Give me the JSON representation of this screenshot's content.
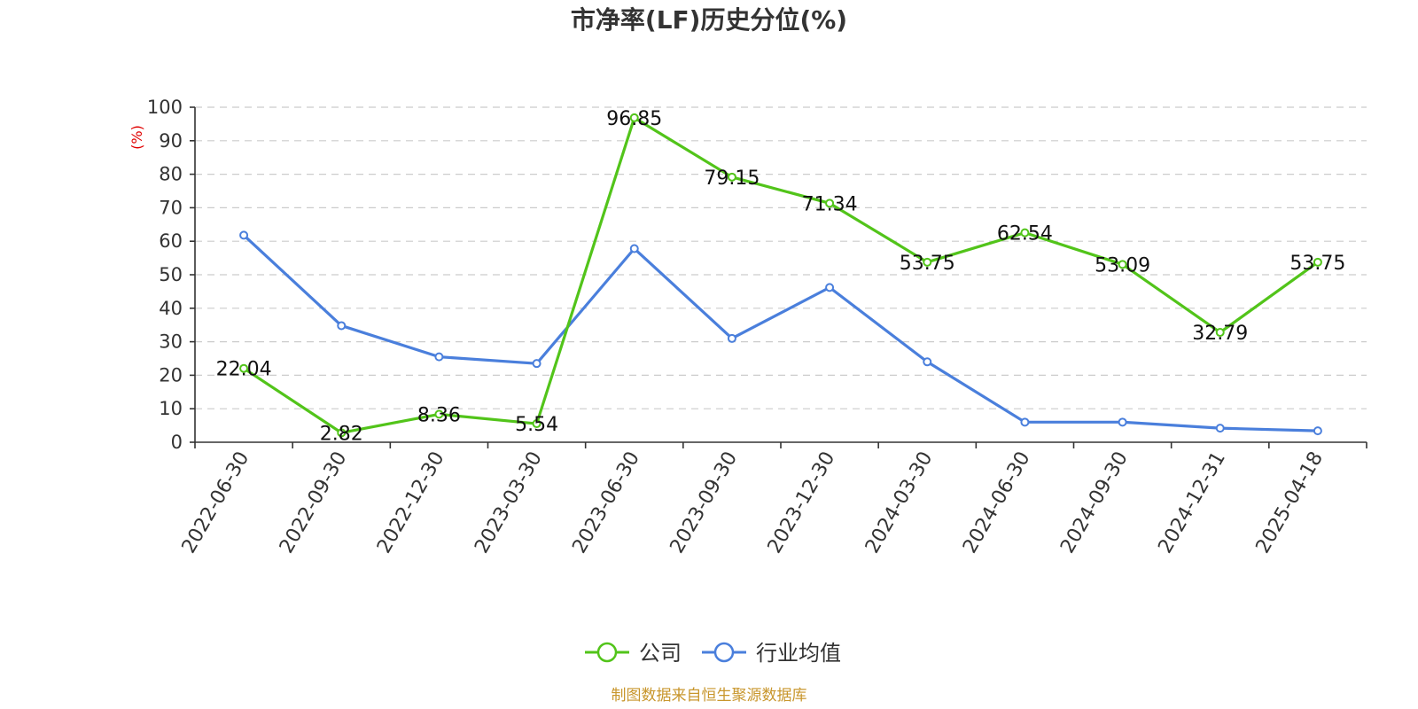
{
  "chart_data": {
    "type": "line",
    "title": "市净率(LF)历史分位(%)",
    "ylabel": "(%)",
    "ylim": [
      0,
      100
    ],
    "yticks": [
      0,
      10,
      20,
      30,
      40,
      50,
      60,
      70,
      80,
      90,
      100
    ],
    "categories": [
      "2022-06-30",
      "2022-09-30",
      "2022-12-30",
      "2023-03-30",
      "2023-06-30",
      "2023-09-30",
      "2023-12-30",
      "2024-03-30",
      "2024-06-30",
      "2024-09-30",
      "2024-12-31",
      "2025-04-18"
    ],
    "series": [
      {
        "name": "公司",
        "color": "#52c41a",
        "values": [
          22.04,
          2.82,
          8.36,
          5.54,
          96.85,
          79.15,
          71.34,
          53.75,
          62.54,
          53.09,
          32.79,
          53.75
        ],
        "labels": [
          "22.04",
          "2.82",
          "8.36",
          "5.54",
          "96.85",
          "79.15",
          "71.34",
          "53.75",
          "62.54",
          "53.09",
          "32.79",
          "53.75"
        ]
      },
      {
        "name": "行业均值",
        "color": "#4a7fdc",
        "values": [
          61.8,
          34.8,
          25.5,
          23.5,
          57.8,
          31.0,
          46.2,
          24.0,
          6.0,
          6.0,
          4.2,
          3.4
        ]
      }
    ],
    "grid": true,
    "legend": "bottom-center",
    "ylabel_color": "#e00000"
  },
  "source_text": "制图数据来自恒生聚源数据库",
  "source_color": "#c8962c"
}
